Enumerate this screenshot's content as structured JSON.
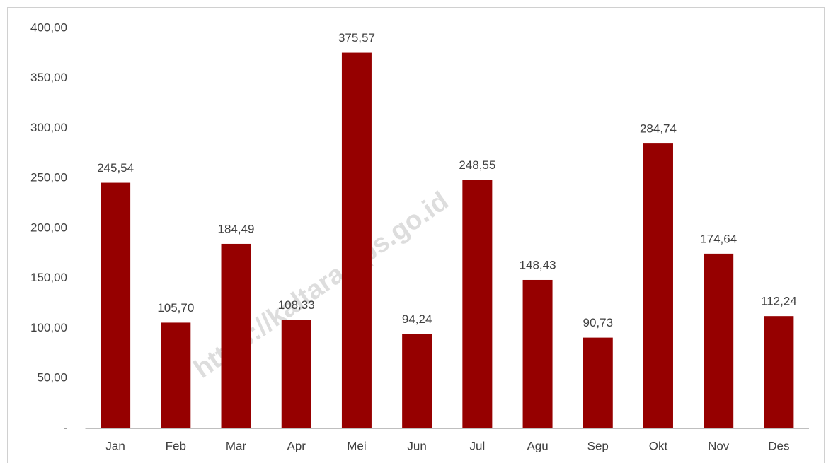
{
  "chart_data": {
    "type": "bar",
    "categories": [
      "Jan",
      "Feb",
      "Mar",
      "Apr",
      "Mei",
      "Jun",
      "Jul",
      "Agu",
      "Sep",
      "Okt",
      "Nov",
      "Des"
    ],
    "values": [
      245.54,
      105.7,
      184.49,
      108.33,
      375.57,
      94.24,
      248.55,
      148.43,
      90.73,
      284.74,
      174.64,
      112.24
    ],
    "value_labels": [
      "245,54",
      "105,70",
      "184,49",
      "108,33",
      "375,57",
      "94,24",
      "248,55",
      "148,43",
      "90,73",
      "284,74",
      "174,64",
      "112,24"
    ],
    "color": "#960000",
    "ylim": [
      0,
      400
    ],
    "yticks": [
      {
        "value": 0,
        "label": "-"
      },
      {
        "value": 50,
        "label": "50,00"
      },
      {
        "value": 100,
        "label": "100,00"
      },
      {
        "value": 150,
        "label": "150,00"
      },
      {
        "value": 200,
        "label": "200,00"
      },
      {
        "value": 250,
        "label": "250,00"
      },
      {
        "value": 300,
        "label": "300,00"
      },
      {
        "value": 350,
        "label": "350,00"
      },
      {
        "value": 400,
        "label": "400,00"
      }
    ],
    "grid": false,
    "watermark": "https://kaltara.bps.go.id"
  }
}
